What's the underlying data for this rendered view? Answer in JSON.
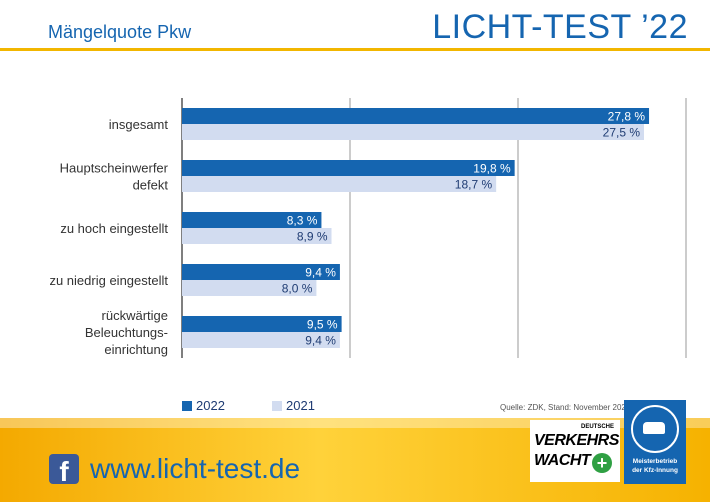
{
  "header": {
    "subtitle": "Mängelquote Pkw",
    "brand": "LICHT-TEST ’22"
  },
  "colors": {
    "series_2022": "#1565b0",
    "series_2021": "#d2dcf0",
    "accent": "#f2b600"
  },
  "legend": {
    "items": [
      {
        "label": "2022"
      },
      {
        "label": "2021"
      }
    ]
  },
  "source": "Quelle: ZDK, Stand: November 2022",
  "chart_data": {
    "type": "bar",
    "orientation": "horizontal",
    "categories": [
      [
        "insgesamt"
      ],
      [
        "Hauptscheinwerfer",
        "defekt"
      ],
      [
        "zu hoch eingestellt"
      ],
      [
        "zu niedrig eingestellt"
      ],
      [
        "rückwärtige",
        "Beleuchtungs-",
        "einrichtung"
      ]
    ],
    "series": [
      {
        "name": "2022",
        "values": [
          27.8,
          19.8,
          8.3,
          9.4,
          9.5
        ],
        "labels": [
          "27,8 %",
          "19,8 %",
          "8,3 %",
          "9,4 %",
          "9,5 %"
        ]
      },
      {
        "name": "2021",
        "values": [
          27.5,
          18.7,
          8.9,
          8.0,
          9.4
        ],
        "labels": [
          "27,5 %",
          "18,7 %",
          "8,9 %",
          "8,0 %",
          "9,4 %"
        ]
      }
    ],
    "xlim": [
      0,
      30
    ],
    "grid": true,
    "legend_position": "bottom-left"
  },
  "footer": {
    "facebook_glyph": "f",
    "url": "www.licht-test.de",
    "logo_dvw": {
      "small": "DEUTSCHE",
      "big1": "VERKEHRS",
      "big2": "WACHT",
      "plus": "+"
    },
    "logo_kfz": {
      "line1": "Meisterbetrieb",
      "line2": "der Kfz-Innung"
    }
  }
}
